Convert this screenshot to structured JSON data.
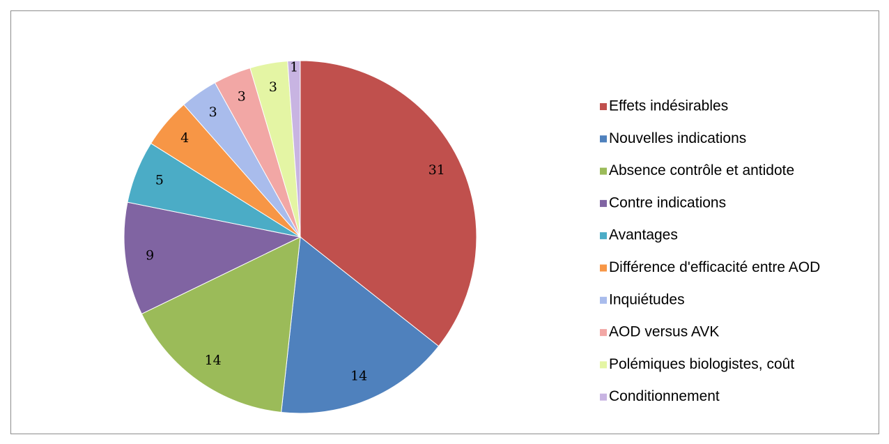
{
  "chart_data": {
    "type": "pie",
    "categories": [
      "Effets indésirables",
      "Nouvelles indications",
      "Absence contrôle et antidote",
      "Contre indications",
      "Avantages",
      "Différence d'efficacité entre AOD",
      "Inquiétudes",
      "AOD versus AVK",
      "Polémiques biologistes, coût",
      "Conditionnement"
    ],
    "values": [
      31,
      14,
      14,
      9,
      5,
      4,
      3,
      3,
      3,
      1
    ],
    "colors": [
      "#c0504d",
      "#4f81bd",
      "#9bbb59",
      "#8064a2",
      "#4bacc6",
      "#f79646",
      "#a9bcec",
      "#f2a7a5",
      "#e4f5a4",
      "#c8b4e2"
    ],
    "legend": "right"
  }
}
